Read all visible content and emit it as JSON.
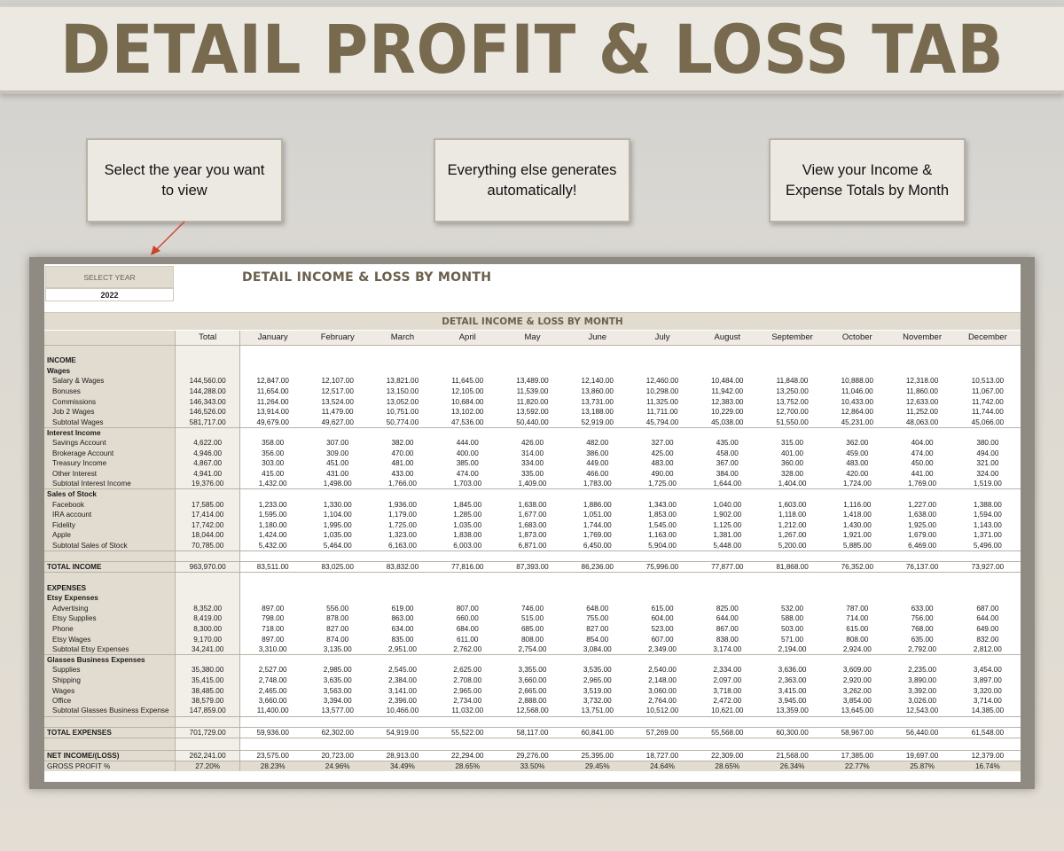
{
  "banner": {
    "title": "DETAIL PROFIT & LOSS TAB"
  },
  "callouts": [
    {
      "text": "Select the year you want to view"
    },
    {
      "text": "Everything else generates automatically!"
    },
    {
      "text": "View your Income & Expense Totals by Month"
    }
  ],
  "sheet": {
    "select_year_label": "SELECT YEAR",
    "select_year_value": "2022",
    "title": "DETAIL INCOME & LOSS BY MONTH",
    "table_heading": "DETAIL INCOME & LOSS BY MONTH",
    "columns": [
      "Total",
      "January",
      "February",
      "March",
      "April",
      "May",
      "June",
      "July",
      "August",
      "September",
      "October",
      "November",
      "December"
    ],
    "rows": [
      {
        "type": "gap",
        "label": "",
        "values": []
      },
      {
        "type": "section",
        "label": "INCOME",
        "values": []
      },
      {
        "type": "group",
        "label": "Wages",
        "values": []
      },
      {
        "type": "item",
        "label": "Salary & Wages",
        "values": [
          "144,560.00",
          "12,847.00",
          "12,107.00",
          "13,821.00",
          "11,645.00",
          "13,489.00",
          "12,140.00",
          "12,460.00",
          "10,484.00",
          "11,848.00",
          "10,888.00",
          "12,318.00",
          "10,513.00"
        ]
      },
      {
        "type": "item",
        "label": "Bonuses",
        "values": [
          "144,288.00",
          "11,654.00",
          "12,517.00",
          "13,150.00",
          "12,105.00",
          "11,539.00",
          "13,860.00",
          "10,298.00",
          "11,942.00",
          "13,250.00",
          "11,046.00",
          "11,860.00",
          "11,067.00"
        ]
      },
      {
        "type": "item",
        "label": "Commissions",
        "values": [
          "146,343.00",
          "11,264.00",
          "13,524.00",
          "13,052.00",
          "10,684.00",
          "11,820.00",
          "13,731.00",
          "11,325.00",
          "12,383.00",
          "13,752.00",
          "10,433.00",
          "12,633.00",
          "11,742.00"
        ]
      },
      {
        "type": "item",
        "label": "Job 2 Wages",
        "values": [
          "146,526.00",
          "13,914.00",
          "11,479.00",
          "10,751.00",
          "13,102.00",
          "13,592.00",
          "13,188.00",
          "11,711.00",
          "10,229.00",
          "12,700.00",
          "12,864.00",
          "11,252.00",
          "11,744.00"
        ]
      },
      {
        "type": "subtotal",
        "label": "Subtotal Wages",
        "values": [
          "581,717.00",
          "49,679.00",
          "49,627.00",
          "50,774.00",
          "47,536.00",
          "50,440.00",
          "52,919.00",
          "45,794.00",
          "45,038.00",
          "51,550.00",
          "45,231.00",
          "48,063.00",
          "45,066.00"
        ]
      },
      {
        "type": "group",
        "label": "Interest Income",
        "values": []
      },
      {
        "type": "item",
        "label": "Savings Account",
        "values": [
          "4,622.00",
          "358.00",
          "307.00",
          "382.00",
          "444.00",
          "426.00",
          "482.00",
          "327.00",
          "435.00",
          "315.00",
          "362.00",
          "404.00",
          "380.00"
        ]
      },
      {
        "type": "item",
        "label": "Brokerage Account",
        "values": [
          "4,946.00",
          "356.00",
          "309.00",
          "470.00",
          "400.00",
          "314.00",
          "386.00",
          "425.00",
          "458.00",
          "401.00",
          "459.00",
          "474.00",
          "494.00"
        ]
      },
      {
        "type": "item",
        "label": "Treasury Income",
        "values": [
          "4,867.00",
          "303.00",
          "451.00",
          "481.00",
          "385.00",
          "334.00",
          "449.00",
          "483.00",
          "367.00",
          "360.00",
          "483.00",
          "450.00",
          "321.00"
        ]
      },
      {
        "type": "item",
        "label": "Other Interest",
        "values": [
          "4,941.00",
          "415.00",
          "431.00",
          "433.00",
          "474.00",
          "335.00",
          "466.00",
          "490.00",
          "384.00",
          "328.00",
          "420.00",
          "441.00",
          "324.00"
        ]
      },
      {
        "type": "subtotal",
        "label": "Subtotal Interest Income",
        "values": [
          "19,376.00",
          "1,432.00",
          "1,498.00",
          "1,766.00",
          "1,703.00",
          "1,409.00",
          "1,783.00",
          "1,725.00",
          "1,644.00",
          "1,404.00",
          "1,724.00",
          "1,769.00",
          "1,519.00"
        ]
      },
      {
        "type": "group",
        "label": "Sales of Stock",
        "values": []
      },
      {
        "type": "item",
        "label": "Facebook",
        "values": [
          "17,585.00",
          "1,233.00",
          "1,330.00",
          "1,936.00",
          "1,845.00",
          "1,638.00",
          "1,886.00",
          "1,343.00",
          "1,040.00",
          "1,603.00",
          "1,116.00",
          "1,227.00",
          "1,388.00"
        ]
      },
      {
        "type": "item",
        "label": "IRA account",
        "values": [
          "17,414.00",
          "1,595.00",
          "1,104.00",
          "1,179.00",
          "1,285.00",
          "1,677.00",
          "1,051.00",
          "1,853.00",
          "1,902.00",
          "1,118.00",
          "1,418.00",
          "1,638.00",
          "1,594.00"
        ]
      },
      {
        "type": "item",
        "label": "Fidelity",
        "values": [
          "17,742.00",
          "1,180.00",
          "1,995.00",
          "1,725.00",
          "1,035.00",
          "1,683.00",
          "1,744.00",
          "1,545.00",
          "1,125.00",
          "1,212.00",
          "1,430.00",
          "1,925.00",
          "1,143.00"
        ]
      },
      {
        "type": "item",
        "label": "Apple",
        "values": [
          "18,044.00",
          "1,424.00",
          "1,035.00",
          "1,323.00",
          "1,838.00",
          "1,873.00",
          "1,769.00",
          "1,163.00",
          "1,381.00",
          "1,267.00",
          "1,921.00",
          "1,679.00",
          "1,371.00"
        ]
      },
      {
        "type": "subtotal",
        "label": "Subtotal Sales of Stock",
        "values": [
          "70,785.00",
          "5,432.00",
          "5,464.00",
          "6,163.00",
          "6,003.00",
          "6,871.00",
          "6,450.00",
          "5,904.00",
          "5,448.00",
          "5,200.00",
          "5,885.00",
          "6,469.00",
          "5,496.00"
        ]
      },
      {
        "type": "gap",
        "label": "",
        "values": []
      },
      {
        "type": "total",
        "label": "TOTAL INCOME",
        "values": [
          "963,970.00",
          "83,511.00",
          "83,025.00",
          "83,832.00",
          "77,816.00",
          "87,393.00",
          "86,236.00",
          "75,996.00",
          "77,877.00",
          "81,868.00",
          "76,352.00",
          "76,137.00",
          "73,927.00"
        ]
      },
      {
        "type": "gap",
        "label": "",
        "values": []
      },
      {
        "type": "section",
        "label": "EXPENSES",
        "values": []
      },
      {
        "type": "group",
        "label": "Etsy Expenses",
        "values": []
      },
      {
        "type": "item",
        "label": "Advertising",
        "values": [
          "8,352.00",
          "897.00",
          "556.00",
          "619.00",
          "807.00",
          "746.00",
          "648.00",
          "615.00",
          "825.00",
          "532.00",
          "787.00",
          "633.00",
          "687.00"
        ]
      },
      {
        "type": "item",
        "label": "Etsy Supplies",
        "values": [
          "8,419.00",
          "798.00",
          "878.00",
          "863.00",
          "660.00",
          "515.00",
          "755.00",
          "604.00",
          "644.00",
          "588.00",
          "714.00",
          "756.00",
          "644.00"
        ]
      },
      {
        "type": "item",
        "label": "Phone",
        "values": [
          "8,300.00",
          "718.00",
          "827.00",
          "634.00",
          "684.00",
          "685.00",
          "827.00",
          "523.00",
          "867.00",
          "503.00",
          "615.00",
          "768.00",
          "649.00"
        ]
      },
      {
        "type": "item",
        "label": "Etsy Wages",
        "values": [
          "9,170.00",
          "897.00",
          "874.00",
          "835.00",
          "611.00",
          "808.00",
          "854.00",
          "607.00",
          "838.00",
          "571.00",
          "808.00",
          "635.00",
          "832.00"
        ]
      },
      {
        "type": "subtotal",
        "label": "Subtotal Etsy Expenses",
        "values": [
          "34,241.00",
          "3,310.00",
          "3,135.00",
          "2,951.00",
          "2,762.00",
          "2,754.00",
          "3,084.00",
          "2,349.00",
          "3,174.00",
          "2,194.00",
          "2,924.00",
          "2,792.00",
          "2,812.00"
        ]
      },
      {
        "type": "group",
        "label": "Glasses Business Expenses",
        "values": []
      },
      {
        "type": "item",
        "label": "Supplies",
        "values": [
          "35,380.00",
          "2,527.00",
          "2,985.00",
          "2,545.00",
          "2,625.00",
          "3,355.00",
          "3,535.00",
          "2,540.00",
          "2,334.00",
          "3,636.00",
          "3,609.00",
          "2,235.00",
          "3,454.00"
        ]
      },
      {
        "type": "item",
        "label": "Shipping",
        "values": [
          "35,415.00",
          "2,748.00",
          "3,635.00",
          "2,384.00",
          "2,708.00",
          "3,660.00",
          "2,965.00",
          "2,148.00",
          "2,097.00",
          "2,363.00",
          "2,920.00",
          "3,890.00",
          "3,897.00"
        ]
      },
      {
        "type": "item",
        "label": "Wages",
        "values": [
          "38,485.00",
          "2,465.00",
          "3,563.00",
          "3,141.00",
          "2,965.00",
          "2,665.00",
          "3,519.00",
          "3,060.00",
          "3,718.00",
          "3,415.00",
          "3,262.00",
          "3,392.00",
          "3,320.00"
        ]
      },
      {
        "type": "item",
        "label": "Office",
        "values": [
          "38,579.00",
          "3,660.00",
          "3,394.00",
          "2,396.00",
          "2,734.00",
          "2,888.00",
          "3,732.00",
          "2,764.00",
          "2,472.00",
          "3,945.00",
          "3,854.00",
          "3,026.00",
          "3,714.00"
        ]
      },
      {
        "type": "subtotal",
        "label": "Subtotal Glasses Business Expense",
        "values": [
          "147,859.00",
          "11,400.00",
          "13,577.00",
          "10,466.00",
          "11,032.00",
          "12,568.00",
          "13,751.00",
          "10,512.00",
          "10,621.00",
          "13,359.00",
          "13,645.00",
          "12,543.00",
          "14,385.00"
        ]
      },
      {
        "type": "gap",
        "label": "",
        "values": []
      },
      {
        "type": "total",
        "label": "TOTAL EXPENSES",
        "values": [
          "701,729.00",
          "59,936.00",
          "62,302.00",
          "54,919.00",
          "55,522.00",
          "58,117.00",
          "60,841.00",
          "57,269.00",
          "55,568.00",
          "60,300.00",
          "58,967.00",
          "56,440.00",
          "61,548.00"
        ]
      },
      {
        "type": "tallgap",
        "label": "",
        "values": []
      },
      {
        "type": "net",
        "label": "NET INCOME/(LOSS)",
        "values": [
          "262,241.00",
          "23,575.00",
          "20,723.00",
          "28,913.00",
          "22,294.00",
          "29,276.00",
          "25,395.00",
          "18,727.00",
          "22,309.00",
          "21,568.00",
          "17,385.00",
          "19,697.00",
          "12,379.00"
        ]
      },
      {
        "type": "gross",
        "label": "GROSS PROFIT %",
        "values": [
          "27.20%",
          "28.23%",
          "24.96%",
          "34.49%",
          "28.65%",
          "33.50%",
          "29.45%",
          "24.64%",
          "28.65%",
          "26.34%",
          "22.77%",
          "25.87%",
          "16.74%"
        ]
      }
    ]
  }
}
